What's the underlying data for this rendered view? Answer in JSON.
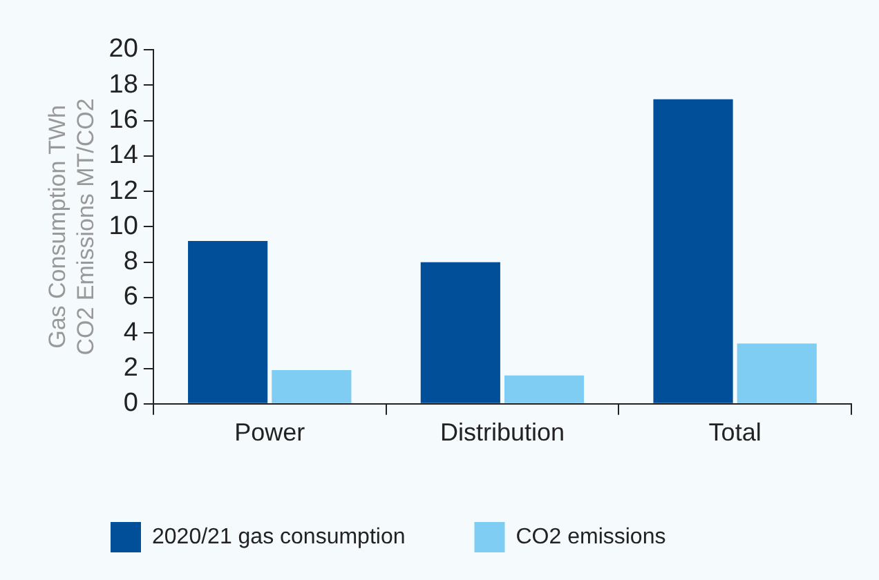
{
  "chart_data": {
    "type": "bar",
    "ylabel": "Gas Consumption TWh\nCO2 Emissions MT/CO2",
    "categories": [
      "Power",
      "Distribution",
      "Total"
    ],
    "series": [
      {
        "name": "2020/21 gas consumption",
        "color": "#004f98",
        "values": [
          9.2,
          8.0,
          17.2
        ]
      },
      {
        "name": "CO2 emissions",
        "color": "#7fcdf2",
        "values": [
          1.9,
          1.6,
          3.4
        ]
      }
    ],
    "ylim": [
      0,
      20
    ],
    "yticks": [
      0,
      2,
      4,
      6,
      8,
      10,
      12,
      14,
      16,
      18,
      20
    ],
    "grid": false,
    "legend": "bottom"
  }
}
